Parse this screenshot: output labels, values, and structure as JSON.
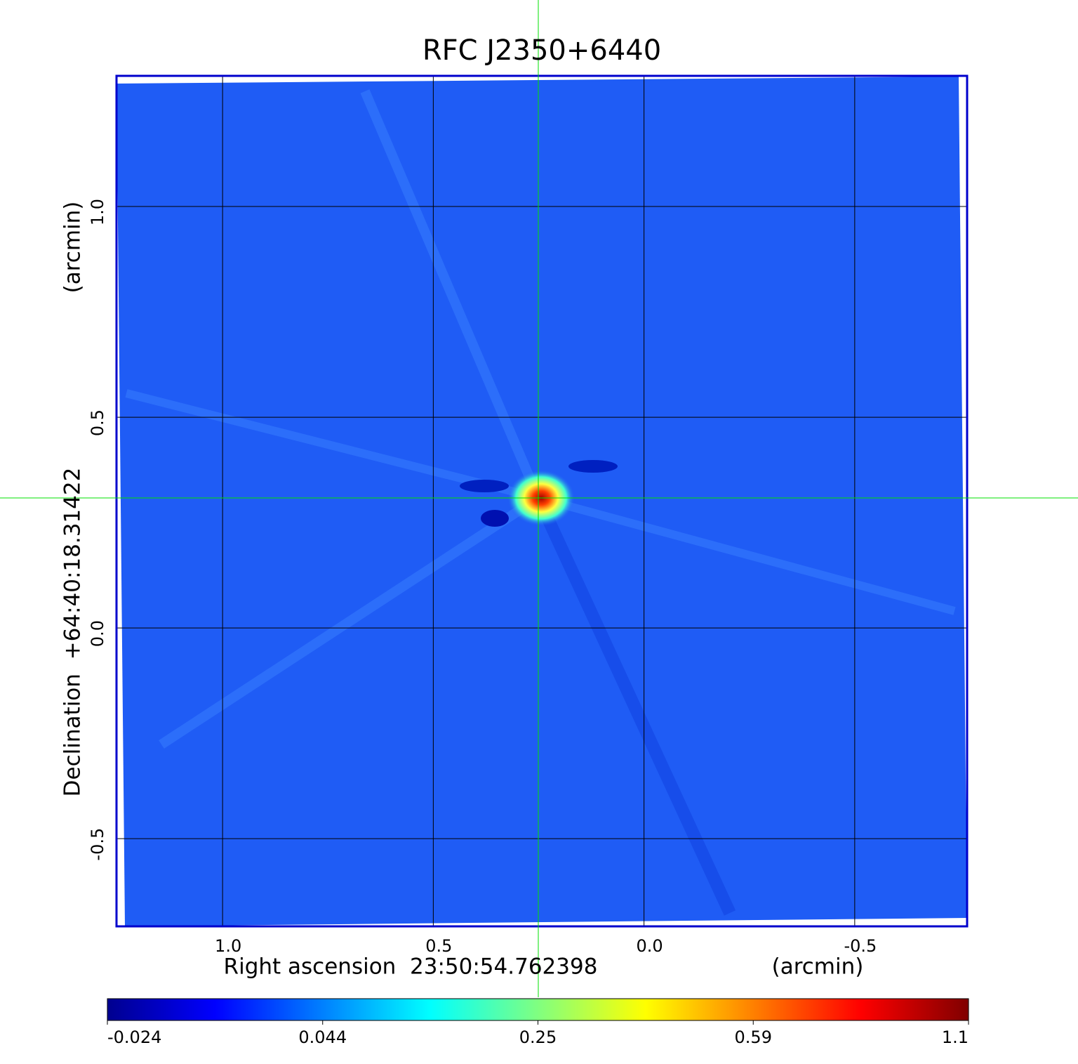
{
  "chart_data": {
    "type": "image",
    "title": "RFC J2350+6440",
    "title_color": "#0000cc",
    "x_label": "Right ascension  23:50:54.762398",
    "x_unit": "(arcmin)",
    "y_label": "Declination  +64:40:18.31422",
    "y_unit": "(arcmin)",
    "xlim": [
      1.2517,
      -0.7667
    ],
    "xticks": [
      {
        "value": 1,
        "label": "1.0"
      },
      {
        "value": 0.5,
        "label": "0.5"
      },
      {
        "value": 0,
        "label": "0.0"
      },
      -0.5
    ],
    "ylim": [
      -0.708,
      1.31
    ],
    "yticks": [
      -0.5,
      {
        "value": 0,
        "label": "0.0"
      },
      {
        "value": 0.5,
        "label": "0.5"
      },
      {
        "value": 1,
        "label": "1.0"
      }
    ],
    "grid": true,
    "colorbar": {
      "ticks": [
        -0.024,
        0.044,
        0.25,
        0.59,
        1.1
      ],
      "colors": [
        "#00008f",
        "#0000ff",
        "#0080ff",
        "#00ffff",
        "#80ff80",
        "#ffff00",
        "#ff8000",
        "#ff0000",
        "#800000"
      ]
    }
  }
}
